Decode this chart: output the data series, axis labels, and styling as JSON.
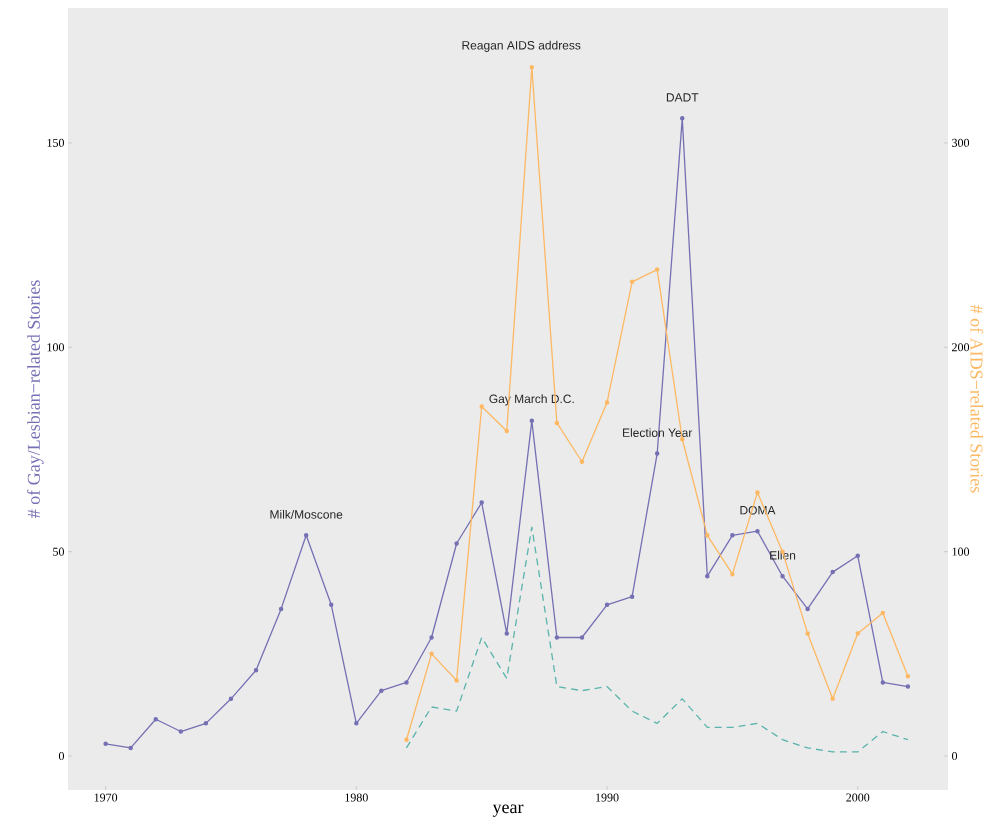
{
  "chart_data": {
    "type": "line",
    "xlabel": "year",
    "ylabel": "# of Gay/Lesbian−related Stories",
    "y2label": "# of AIDS−related Stories",
    "xlim": [
      1968.5,
      2003.6
    ],
    "xticks": [
      1970,
      1980,
      1990,
      2000
    ],
    "ylim": [
      -8.3,
      183
    ],
    "yticks": [
      0,
      50,
      100,
      150
    ],
    "y2lim": [
      -16.6,
      366
    ],
    "y2ticks": [
      0,
      100,
      200,
      300
    ],
    "grid": false,
    "series": [
      {
        "color": "#7570b3",
        "marker": "circle",
        "line_style": "solid",
        "x": [
          1970,
          1971,
          1972,
          1973,
          1974,
          1975,
          1976,
          1977,
          1978,
          1979,
          1980,
          1981,
          1982,
          1983,
          1984,
          1985,
          1986,
          1987,
          1988,
          1989,
          1990,
          1991,
          1992,
          1993,
          1994,
          1995,
          1996,
          1997,
          1998,
          1999,
          2000,
          2001,
          2002
        ],
        "values": [
          3,
          2,
          9,
          6,
          8,
          14,
          21,
          36,
          54,
          37,
          8,
          16,
          18,
          29,
          52,
          62,
          30,
          82,
          29,
          29,
          37,
          39,
          74,
          156,
          44,
          54,
          55,
          44,
          36,
          45,
          49,
          18,
          17
        ]
      },
      {
        "color": "#fdb863",
        "marker": "circle",
        "line_style": "solid",
        "axis": "y2",
        "x": [
          1982,
          1983,
          1984,
          1985,
          1986,
          1987,
          1988,
          1989,
          1990,
          1991,
          1992,
          1993,
          1994,
          1995,
          1996,
          1997,
          1998,
          1999,
          2000,
          2001,
          2002
        ],
        "values": [
          8,
          50,
          37,
          171,
          159,
          337,
          163,
          144,
          173,
          232,
          238,
          155,
          108,
          89,
          129,
          100,
          60,
          28,
          60,
          70,
          39
        ]
      },
      {
        "color": "#5ab4ac",
        "marker": "none",
        "line_style": "dashed",
        "x": [
          1982,
          1983,
          1984,
          1985,
          1986,
          1987,
          1988,
          1989,
          1990,
          1991,
          1992,
          1993,
          1994,
          1995,
          1996,
          1997,
          1998,
          1999,
          2000,
          2001,
          2002
        ],
        "values": [
          2,
          12,
          11,
          29,
          19,
          56,
          17,
          16,
          17,
          11,
          8,
          14,
          7,
          7,
          8,
          4,
          2,
          1,
          1,
          6,
          4
        ]
      }
    ],
    "annotations": [
      {
        "text": "Milk/Moscone",
        "x": 1978,
        "y": 54
      },
      "Reagan AIDS address",
      {
        "text": "DADT",
        "x": 1993,
        "y": 156
      },
      {
        "text": "Gay March D.C.",
        "x": 1987,
        "y": 82
      },
      {
        "text": "Election Year",
        "x": 1992,
        "y": 74
      },
      {
        "text": "DOMA",
        "x": 1996,
        "y": 55
      },
      {
        "text": "Ellen",
        "x": 1997,
        "y": 44
      }
    ]
  }
}
